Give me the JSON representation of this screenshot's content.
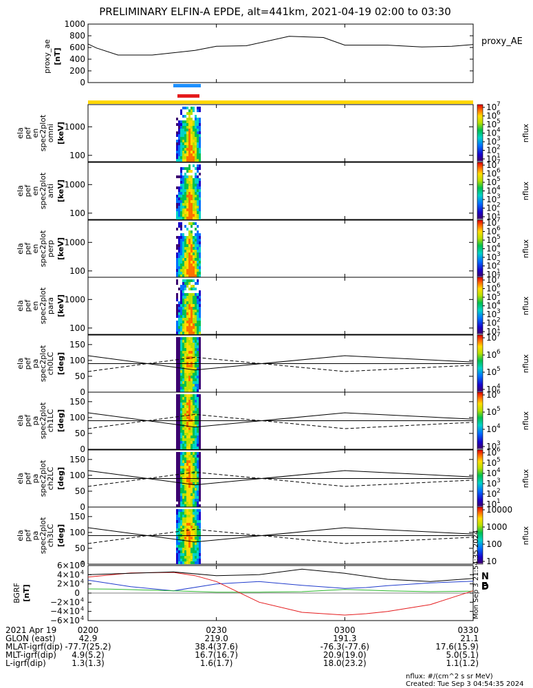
{
  "title": "PRELIMINARY ELFIN-A EPDE, alt=441km, 2021-04-19 02:00 to 03:30",
  "colors": {
    "spin_blue": "#1E90FF",
    "spin_red": "#E41A1C",
    "sci_yellow": "#FFD700",
    "bgrf_N": "#1F3BCC",
    "bgrf_E": "#2DB82D",
    "bgrf_D": "#E41A1C",
    "bgrf_total": "#000000"
  },
  "proxy_ae": {
    "ylabel": "proxy_ae",
    "unit": "[nT]",
    "legend": "proxy_AE",
    "ticks": [
      "0",
      "200",
      "400",
      "600",
      "800",
      "1000"
    ]
  },
  "spectra_panels": [
    {
      "l1": "ela",
      "l2": "pef",
      "l3": "en",
      "l4": "spec2plot",
      "l5": "omni",
      "unit": "[keV]",
      "ticks": [
        "100",
        "1000"
      ]
    },
    {
      "l1": "ela",
      "l2": "pef",
      "l3": "en",
      "l4": "spec2plot",
      "l5": "anti",
      "unit": "[keV]",
      "ticks": [
        "100",
        "1000"
      ]
    },
    {
      "l1": "ela",
      "l2": "pef",
      "l3": "en",
      "l4": "spec2plot",
      "l5": "perp",
      "unit": "[keV]",
      "ticks": [
        "100",
        "1000"
      ]
    },
    {
      "l1": "ela",
      "l2": "pef",
      "l3": "en",
      "l4": "spec2plot",
      "l5": "para",
      "unit": "[keV]",
      "ticks": [
        "100",
        "1000"
      ]
    }
  ],
  "pa_panels": [
    {
      "l1": "ela",
      "l2": "pef",
      "l3": "pa",
      "l4": "spec2plot",
      "l5": "ch0LC",
      "unit": "[deg]",
      "ticks": [
        "0",
        "50",
        "100",
        "150"
      ]
    },
    {
      "l1": "ela",
      "l2": "pef",
      "l3": "pa",
      "l4": "spec2plot",
      "l5": "ch1LC",
      "unit": "[deg]",
      "ticks": [
        "0",
        "50",
        "100",
        "150"
      ]
    },
    {
      "l1": "ela",
      "l2": "pef",
      "l3": "pa",
      "l4": "spec2plot",
      "l5": "ch2LC",
      "unit": "[deg]",
      "ticks": [
        "0",
        "50",
        "100",
        "150"
      ]
    },
    {
      "l1": "ela",
      "l2": "pef",
      "l3": "pa",
      "l4": "spec2plot",
      "l5": "ch3LC",
      "unit": "[deg]",
      "ticks": [
        "0",
        "50",
        "100",
        "150"
      ]
    }
  ],
  "colorbars": [
    {
      "label": "nflux",
      "ticks": [
        "10",
        "10",
        "10",
        "10",
        "10",
        "10",
        "10"
      ],
      "exps": [
        "1",
        "2",
        "3",
        "4",
        "5",
        "6",
        "7"
      ]
    },
    {
      "label": "nflux",
      "ticks": [
        "10",
        "10",
        "10",
        "10",
        "10",
        "10",
        "10"
      ],
      "exps": [
        "1",
        "2",
        "3",
        "4",
        "5",
        "6",
        "7"
      ]
    },
    {
      "label": "nflux",
      "ticks": [
        "10",
        "10",
        "10",
        "10",
        "10",
        "10",
        "10"
      ],
      "exps": [
        "1",
        "2",
        "3",
        "4",
        "5",
        "6",
        "7"
      ]
    },
    {
      "label": "nflux",
      "ticks": [
        "10",
        "10",
        "10",
        "10",
        "10",
        "10",
        "10"
      ],
      "exps": [
        "1",
        "2",
        "3",
        "4",
        "5",
        "6",
        "7"
      ]
    },
    {
      "label": "nflux",
      "ticks": [
        "10",
        "10",
        "10",
        "10"
      ],
      "exps": [
        "4",
        "5",
        "6",
        "7"
      ]
    },
    {
      "label": "nflux",
      "ticks": [
        "10",
        "10",
        "10",
        "10"
      ],
      "exps": [
        "3",
        "4",
        "5",
        "6"
      ]
    },
    {
      "label": "nflux",
      "ticks": [
        "10",
        "10",
        "10",
        "10",
        "10",
        "10"
      ],
      "exps": [
        "1",
        "2",
        "3",
        "4",
        "5",
        "6"
      ]
    },
    {
      "label": "nflux",
      "ticks": [
        "10",
        "100",
        "1000",
        "10000"
      ],
      "exps": [
        "",
        "",
        "",
        ""
      ]
    }
  ],
  "bgrf": {
    "ylabel": "BGRF",
    "unit": "[nT]",
    "ticks": [
      "−6×10",
      "−4×10",
      "−2×10",
      "0",
      "2×10",
      "4×10",
      "6×10"
    ],
    "tick_exp": "4",
    "legend": [
      "N",
      "E",
      "D"
    ],
    "sidestamp": "Mon Sep  3 21:54:35 2024"
  },
  "footer": {
    "rows": [
      {
        "label": "2021 Apr 19",
        "values": [
          "0200",
          "0230",
          "0300",
          "0330"
        ]
      },
      {
        "label": "GLON (east)",
        "values": [
          "42.9",
          "219.0",
          "191.3",
          "21.1"
        ]
      },
      {
        "label": "MLAT-igrf(dip)",
        "values": [
          "-77.7(25.2)",
          "38.4(37.6)",
          "-76.3(-77.6)",
          "17.6(15.9)"
        ]
      },
      {
        "label": "MLT-igrf(dip)",
        "values": [
          "4.9(5.2)",
          "16.7(16.7)",
          "20.9(19.0)",
          "5.0(5.1)"
        ]
      },
      {
        "label": "L-igrf(dip)",
        "values": [
          "1.3(1.3)",
          "1.6(1.7)",
          "18.0(23.2)",
          "1.1(1.2)"
        ]
      }
    ],
    "note1": "nflux: #/(cm^2 s sr MeV)",
    "note2": "Created: Tue Sep  3 04:54:35 2024"
  },
  "chart_data": {
    "type": "line",
    "title": "PRELIMINARY ELFIN-A EPDE, alt=441km, 2021-04-19 02:00 to 03:30",
    "x_ticks": [
      "0200",
      "0230",
      "0300",
      "0330"
    ],
    "x_minutes": [
      0,
      30,
      60,
      90
    ],
    "series": [
      {
        "name": "proxy_AE",
        "x": [
          0,
          2,
          7,
          15,
          25,
          30,
          37,
          47,
          55,
          60,
          70,
          78,
          85,
          90
        ],
        "y": [
          660,
          590,
          470,
          470,
          550,
          620,
          630,
          790,
          770,
          640,
          640,
          610,
          620,
          650
        ]
      }
    ],
    "proxy_ae_ylim": [
      0,
      1000
    ],
    "energy_ylim_log": [
      60,
      6000
    ],
    "pa_ylim": [
      0,
      180
    ],
    "bgrf_ylim": [
      -60000,
      60000
    ],
    "bgrf_series": [
      {
        "name": "N",
        "x": [
          0,
          10,
          20,
          30,
          40,
          50,
          60,
          65,
          70,
          80,
          90
        ],
        "y": [
          28000,
          14000,
          5000,
          20000,
          25000,
          17000,
          10000,
          12000,
          16000,
          22000,
          26000
        ]
      },
      {
        "name": "E",
        "x": [
          0,
          5,
          10,
          20,
          30,
          40,
          50,
          60,
          70,
          80,
          90
        ],
        "y": [
          9000,
          8500,
          7500,
          5000,
          2000,
          2000,
          3000,
          8000,
          5000,
          3000,
          4000
        ]
      },
      {
        "name": "D",
        "x": [
          0,
          10,
          20,
          25,
          30,
          40,
          50,
          60,
          65,
          70,
          80,
          90
        ],
        "y": [
          35000,
          44000,
          45000,
          38000,
          25000,
          -20000,
          -42000,
          -48000,
          -45000,
          -40000,
          -25000,
          5000
        ]
      },
      {
        "name": "total",
        "x": [
          0,
          10,
          20,
          30,
          40,
          50,
          60,
          70,
          80,
          90
        ],
        "y": [
          40000,
          43000,
          46000,
          38000,
          40000,
          52000,
          43000,
          30000,
          25000,
          32000
        ]
      }
    ],
    "pa_lines_deg": {
      "losscone": [
        115,
        70,
        115,
        95
      ],
      "antilc": [
        90,
        90,
        90,
        90
      ]
    }
  }
}
